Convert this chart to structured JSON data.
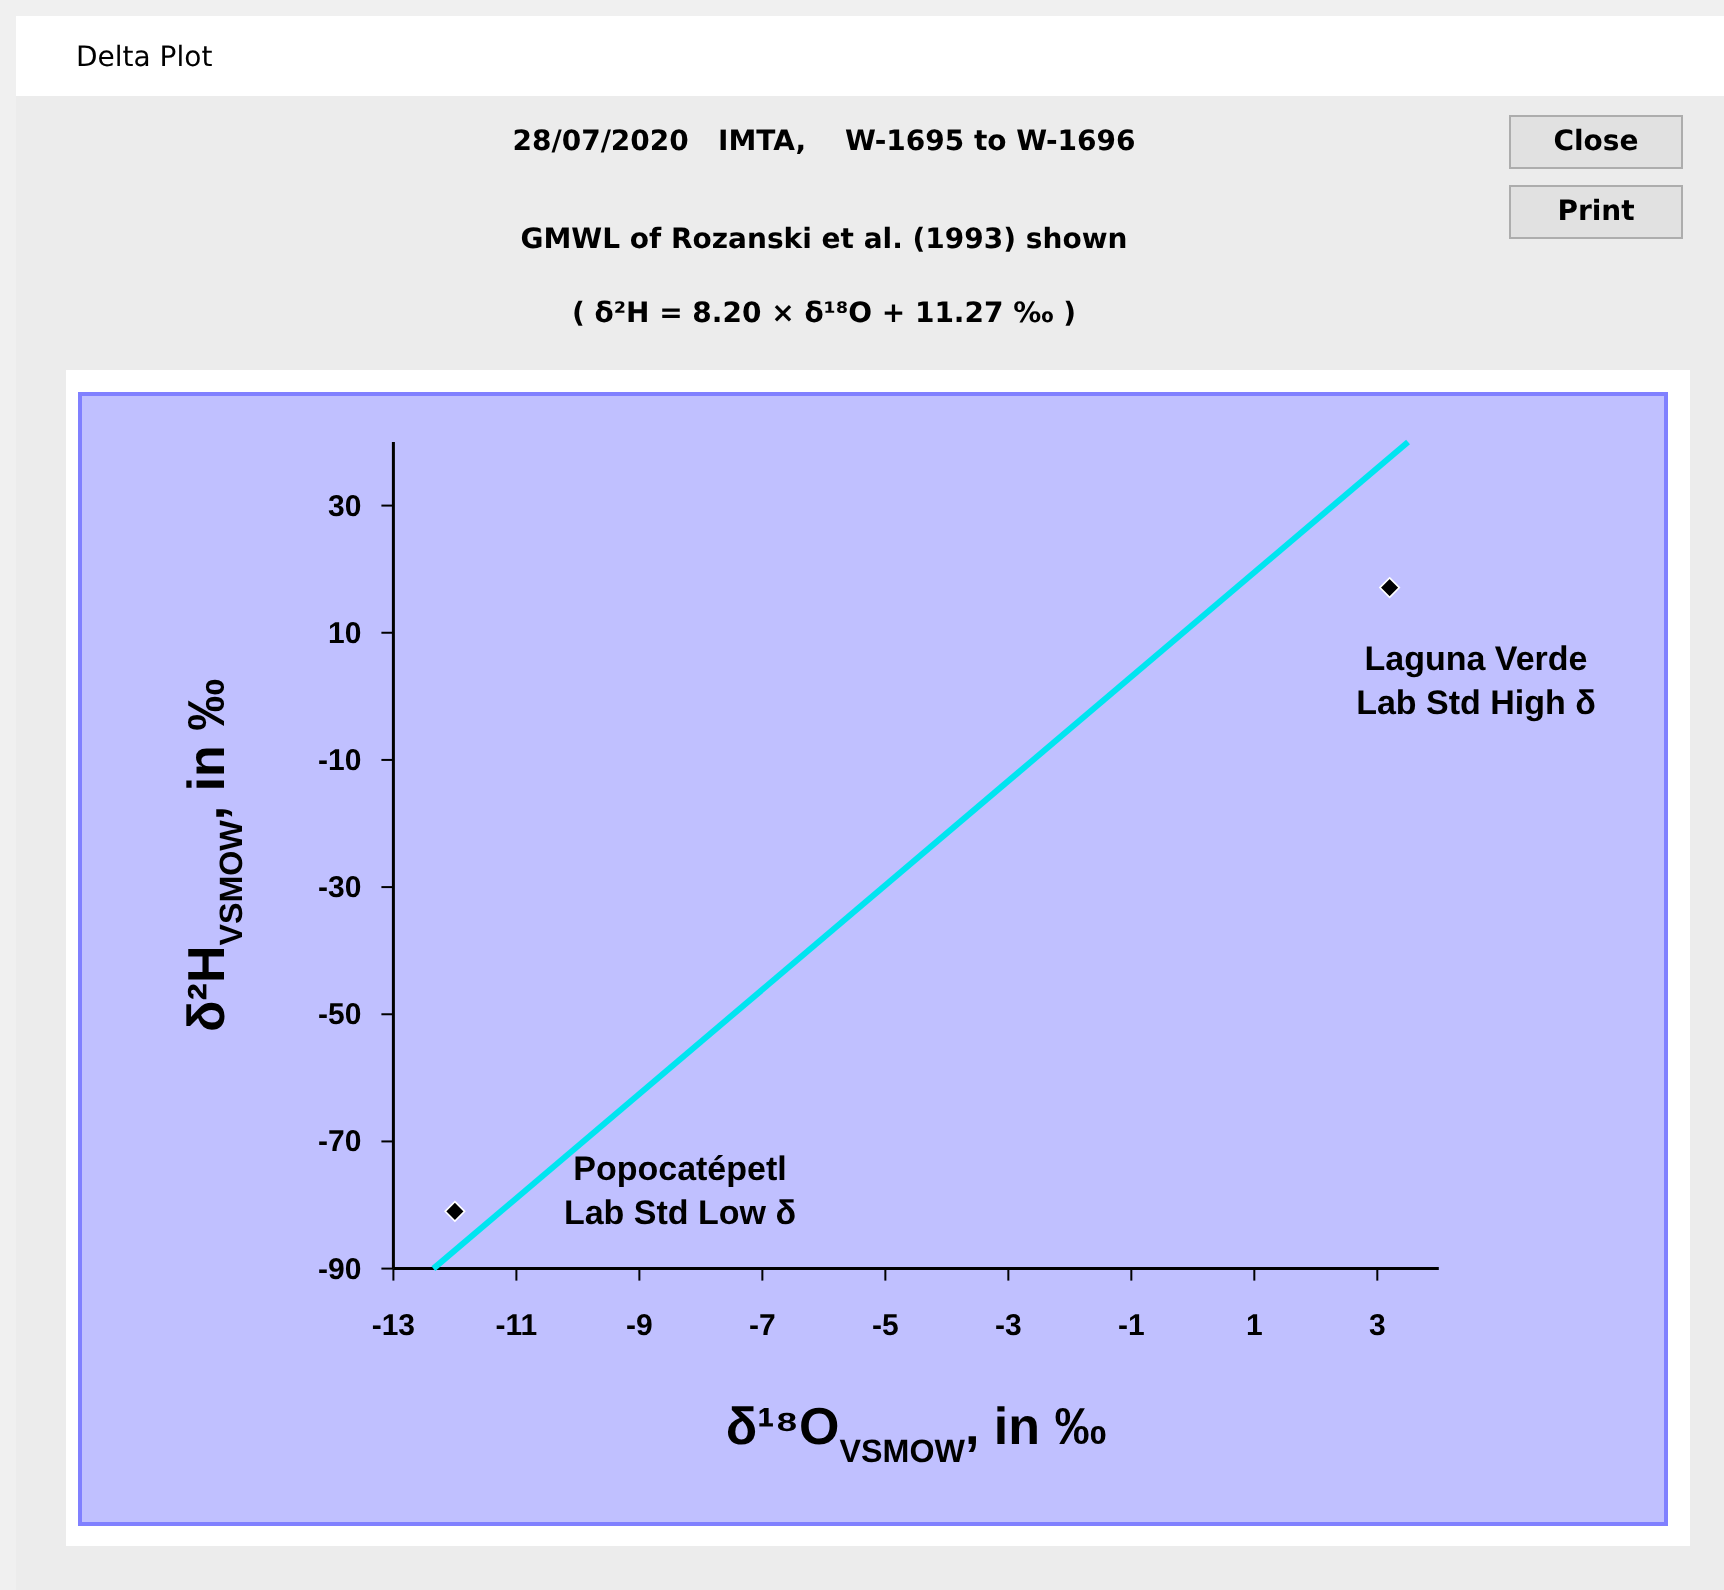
{
  "chart_data": {
    "type": "scatter",
    "title": "28/07/2020   IMTA,    W-1695 to W-1696",
    "subtitle": "GMWL of Rozanski et al. (1993) shown\n( δ²H = 8.20 × δ¹⁸O + 11.27 ‰ )",
    "xlabel": "δ¹⁸O$_{VSMOW}$, in ‰",
    "ylabel": "δ²H$_{VSMOW}$, in ‰",
    "xlim": [
      -13,
      4
    ],
    "xticks": [
      -13,
      -11,
      -9,
      -7,
      -5,
      -3,
      -1,
      1,
      3
    ],
    "ylim": [
      -90,
      40
    ],
    "yticks": [
      -90,
      -70,
      -50,
      -30,
      -10,
      10,
      30
    ],
    "grid": false,
    "series": [
      {
        "type": "line",
        "color": "#00e5f0",
        "x": [
          -12.35,
          3.5
        ],
        "values": [
          -90,
          40
        ],
        "marker": "none",
        "line_style": "solid"
      },
      {
        "color": "#000000",
        "x": [
          -12.0,
          3.2
        ],
        "values": [
          -81.0,
          17.1
        ],
        "marker": "diamond"
      }
    ],
    "annotations": [
      "Delta Plot",
      "Close",
      "Print",
      "Popocatépetl\nLab Std Low δ",
      "Laguna Verde\nLab Std High δ"
    ]
  }
}
